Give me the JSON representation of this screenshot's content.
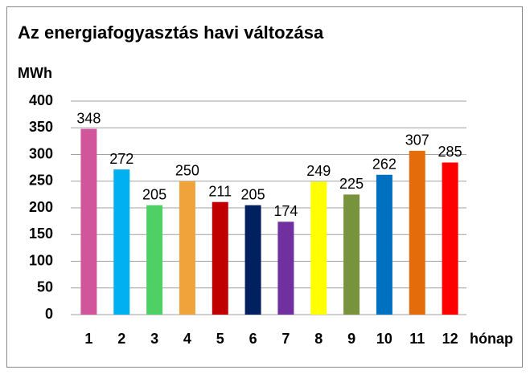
{
  "chart_data": {
    "type": "bar",
    "title": "Az energiafogyasztás havi változása",
    "y_label": "MWh",
    "x_label": "hónap",
    "categories": [
      "1",
      "2",
      "3",
      "4",
      "5",
      "6",
      "7",
      "8",
      "9",
      "10",
      "11",
      "12"
    ],
    "values": [
      348,
      272,
      205,
      250,
      211,
      205,
      174,
      249,
      225,
      262,
      307,
      285
    ],
    "colors": [
      "#d1559b",
      "#00b0f0",
      "#4fd065",
      "#f0a33a",
      "#c00000",
      "#002060",
      "#7030a0",
      "#ffff00",
      "#77933c",
      "#0070c0",
      "#e46c0a",
      "#ff0000"
    ],
    "ylim": [
      0,
      400
    ],
    "yticks": [
      0,
      50,
      100,
      150,
      200,
      250,
      300,
      350,
      400
    ],
    "grid": true
  }
}
